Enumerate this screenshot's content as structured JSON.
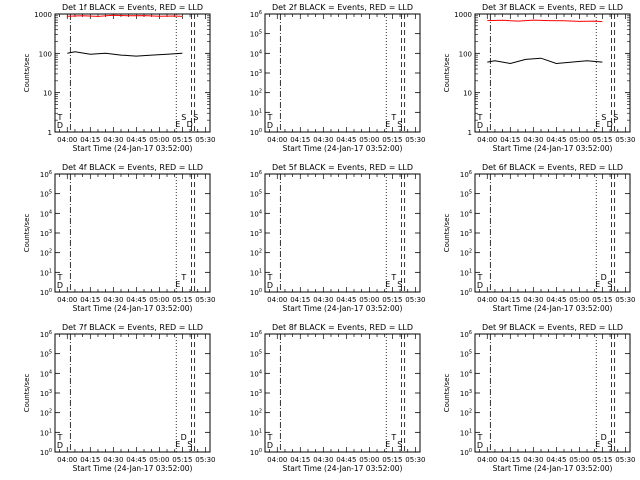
{
  "chart_data": [
    {
      "panel": "Det 1f",
      "title": "Det 1f BLACK = Events, RED = LLD",
      "type": "line",
      "yscale": "log",
      "ylim": [
        1,
        1000
      ],
      "yticks": [
        "1",
        "10",
        "100",
        "1000"
      ],
      "ylabel": "Counts/sec",
      "xticks": [
        "04:00",
        "04:15",
        "04:30",
        "04:45",
        "05:00",
        "05:15",
        "05:30"
      ],
      "xlabel": "Start Time (24-Jan-17 03:52:00)",
      "markers_left": [
        "D",
        "T"
      ],
      "markers_right": [
        "E",
        "S",
        "D",
        "S"
      ],
      "series": [
        {
          "color": "#ff0000",
          "x": [
            "04:00",
            "04:10",
            "04:20",
            "04:30",
            "04:40",
            "04:50",
            "05:00",
            "05:10",
            "05:15"
          ],
          "values": [
            880,
            900,
            870,
            930,
            900,
            910,
            880,
            890,
            870
          ]
        },
        {
          "color": "#000000",
          "x": [
            "04:00",
            "04:05",
            "04:15",
            "04:25",
            "04:35",
            "04:45",
            "04:55",
            "05:05",
            "05:15"
          ],
          "values": [
            100,
            110,
            95,
            100,
            90,
            85,
            90,
            95,
            100
          ]
        }
      ]
    },
    {
      "panel": "Det 2f",
      "title": "Det 2f BLACK = Events, RED = LLD",
      "type": "line",
      "yscale": "log",
      "ylim": [
        1,
        1000000
      ],
      "yticks": [
        "10^0",
        "10^1",
        "10^2",
        "10^3",
        "10^4",
        "10^5",
        "10^6"
      ],
      "ylabel": "",
      "xticks": [
        "04:00",
        "04:15",
        "04:30",
        "04:45",
        "05:00",
        "05:15",
        "05:30"
      ],
      "xlabel": "Start Time (24-Jan-17 03:52:00)",
      "markers_left": [
        "D",
        "T"
      ],
      "markers_right": [
        "E",
        "T",
        "S"
      ],
      "series": []
    },
    {
      "panel": "Det 3f",
      "title": "Det 3f BLACK = Events, RED = LLD",
      "type": "line",
      "yscale": "log",
      "ylim": [
        1,
        1000
      ],
      "yticks": [
        "1",
        "10",
        "100",
        "1000"
      ],
      "ylabel": "Counts/sec",
      "xticks": [
        "04:00",
        "04:15",
        "04:30",
        "04:45",
        "05:00",
        "05:15",
        "05:30"
      ],
      "xlabel": "Start Time (24-Jan-17 03:52:00)",
      "markers_left": [
        "D",
        "T"
      ],
      "markers_right": [
        "E",
        "S",
        "D",
        "S"
      ],
      "series": [
        {
          "color": "#ff0000",
          "x": [
            "04:00",
            "04:10",
            "04:20",
            "04:30",
            "04:40",
            "04:50",
            "05:00",
            "05:10",
            "05:15"
          ],
          "values": [
            680,
            690,
            660,
            700,
            680,
            670,
            650,
            660,
            640
          ]
        },
        {
          "color": "#000000",
          "x": [
            "04:00",
            "04:05",
            "04:15",
            "04:25",
            "04:35",
            "04:45",
            "04:55",
            "05:05",
            "05:15"
          ],
          "values": [
            60,
            65,
            55,
            70,
            75,
            55,
            60,
            65,
            60
          ]
        }
      ]
    },
    {
      "panel": "Det 4f",
      "title": "Det 4f BLACK = Events, RED = LLD",
      "type": "line",
      "yscale": "log",
      "ylim": [
        1,
        1000000
      ],
      "yticks": [
        "10^0",
        "10^1",
        "10^2",
        "10^3",
        "10^4",
        "10^5",
        "10^6"
      ],
      "ylabel": "Counts/sec",
      "xticks": [
        "04:00",
        "04:15",
        "04:30",
        "04:45",
        "05:00",
        "05:15",
        "05:30"
      ],
      "xlabel": "Start Time (24-Jan-17 03:52:00)",
      "markers_left": [
        "D",
        "T"
      ],
      "markers_right": [
        "E",
        "T"
      ],
      "series": []
    },
    {
      "panel": "Det 5f",
      "title": "Det 5f BLACK = Events, RED = LLD",
      "type": "line",
      "yscale": "log",
      "ylim": [
        1,
        1000000
      ],
      "yticks": [
        "10^0",
        "10^1",
        "10^2",
        "10^3",
        "10^4",
        "10^5",
        "10^6"
      ],
      "ylabel": "",
      "xticks": [
        "04:00",
        "04:15",
        "04:30",
        "04:45",
        "05:00",
        "05:15",
        "05:30"
      ],
      "xlabel": "Start Time (24-Jan-17 03:52:00)",
      "markers_left": [
        "D",
        "T"
      ],
      "markers_right": [
        "E",
        "T",
        "S"
      ],
      "series": []
    },
    {
      "panel": "Det 6f",
      "title": "Det 6f BLACK = Events, RED = LLD",
      "type": "line",
      "yscale": "log",
      "ylim": [
        1,
        1000000
      ],
      "yticks": [
        "10^0",
        "10^1",
        "10^2",
        "10^3",
        "10^4",
        "10^5",
        "10^6"
      ],
      "ylabel": "Counts/sec",
      "xticks": [
        "04:00",
        "04:15",
        "04:30",
        "04:45",
        "05:00",
        "05:15",
        "05:30"
      ],
      "xlabel": "Start Time (24-Jan-17 03:52:00)",
      "markers_left": [
        "D",
        "T"
      ],
      "markers_right": [
        "E",
        "D",
        "S"
      ],
      "series": []
    },
    {
      "panel": "Det 7f",
      "title": "Det 7f BLACK = Events, RED = LLD",
      "type": "line",
      "yscale": "log",
      "ylim": [
        1,
        1000000
      ],
      "yticks": [
        "10^0",
        "10^1",
        "10^2",
        "10^3",
        "10^4",
        "10^5",
        "10^6"
      ],
      "ylabel": "Counts/sec",
      "xticks": [
        "04:00",
        "04:15",
        "04:30",
        "04:45",
        "05:00",
        "05:15",
        "05:30"
      ],
      "xlabel": "Start Time (24-Jan-17 03:52:00)",
      "markers_left": [
        "D",
        "T"
      ],
      "markers_right": [
        "E",
        "D",
        "S"
      ],
      "series": []
    },
    {
      "panel": "Det 8f",
      "title": "Det 8f BLACK = Events, RED = LLD",
      "type": "line",
      "yscale": "log",
      "ylim": [
        1,
        1000000
      ],
      "yticks": [
        "10^0",
        "10^1",
        "10^2",
        "10^3",
        "10^4",
        "10^5",
        "10^6"
      ],
      "ylabel": "",
      "xticks": [
        "04:00",
        "04:15",
        "04:30",
        "04:45",
        "05:00",
        "05:15",
        "05:30"
      ],
      "xlabel": "Start Time (24-Jan-17 03:52:00)",
      "markers_left": [
        "D",
        "T"
      ],
      "markers_right": [
        "E",
        "T",
        "S"
      ],
      "series": []
    },
    {
      "panel": "Det 9f",
      "title": "Det 9f BLACK = Events, RED = LLD",
      "type": "line",
      "yscale": "log",
      "ylim": [
        1,
        1000000
      ],
      "yticks": [
        "10^0",
        "10^1",
        "10^2",
        "10^3",
        "10^4",
        "10^5",
        "10^6"
      ],
      "ylabel": "Counts/sec",
      "xticks": [
        "04:00",
        "04:15",
        "04:30",
        "04:45",
        "05:00",
        "05:15",
        "05:30"
      ],
      "xlabel": "Start Time (24-Jan-17 03:52:00)",
      "markers_left": [
        "D",
        "T"
      ],
      "markers_right": [
        "E",
        "D",
        "S"
      ],
      "series": []
    }
  ],
  "colors": {
    "events": "#000000",
    "lld": "#ff0000",
    "background": "#ffffff",
    "axis": "#000000"
  },
  "vlines": [
    {
      "time": "04:02",
      "style": "dash-dot"
    },
    {
      "time": "05:11",
      "style": "dotted"
    },
    {
      "time": "05:21",
      "style": "dashed"
    },
    {
      "time": "05:23",
      "style": "dashed"
    }
  ]
}
